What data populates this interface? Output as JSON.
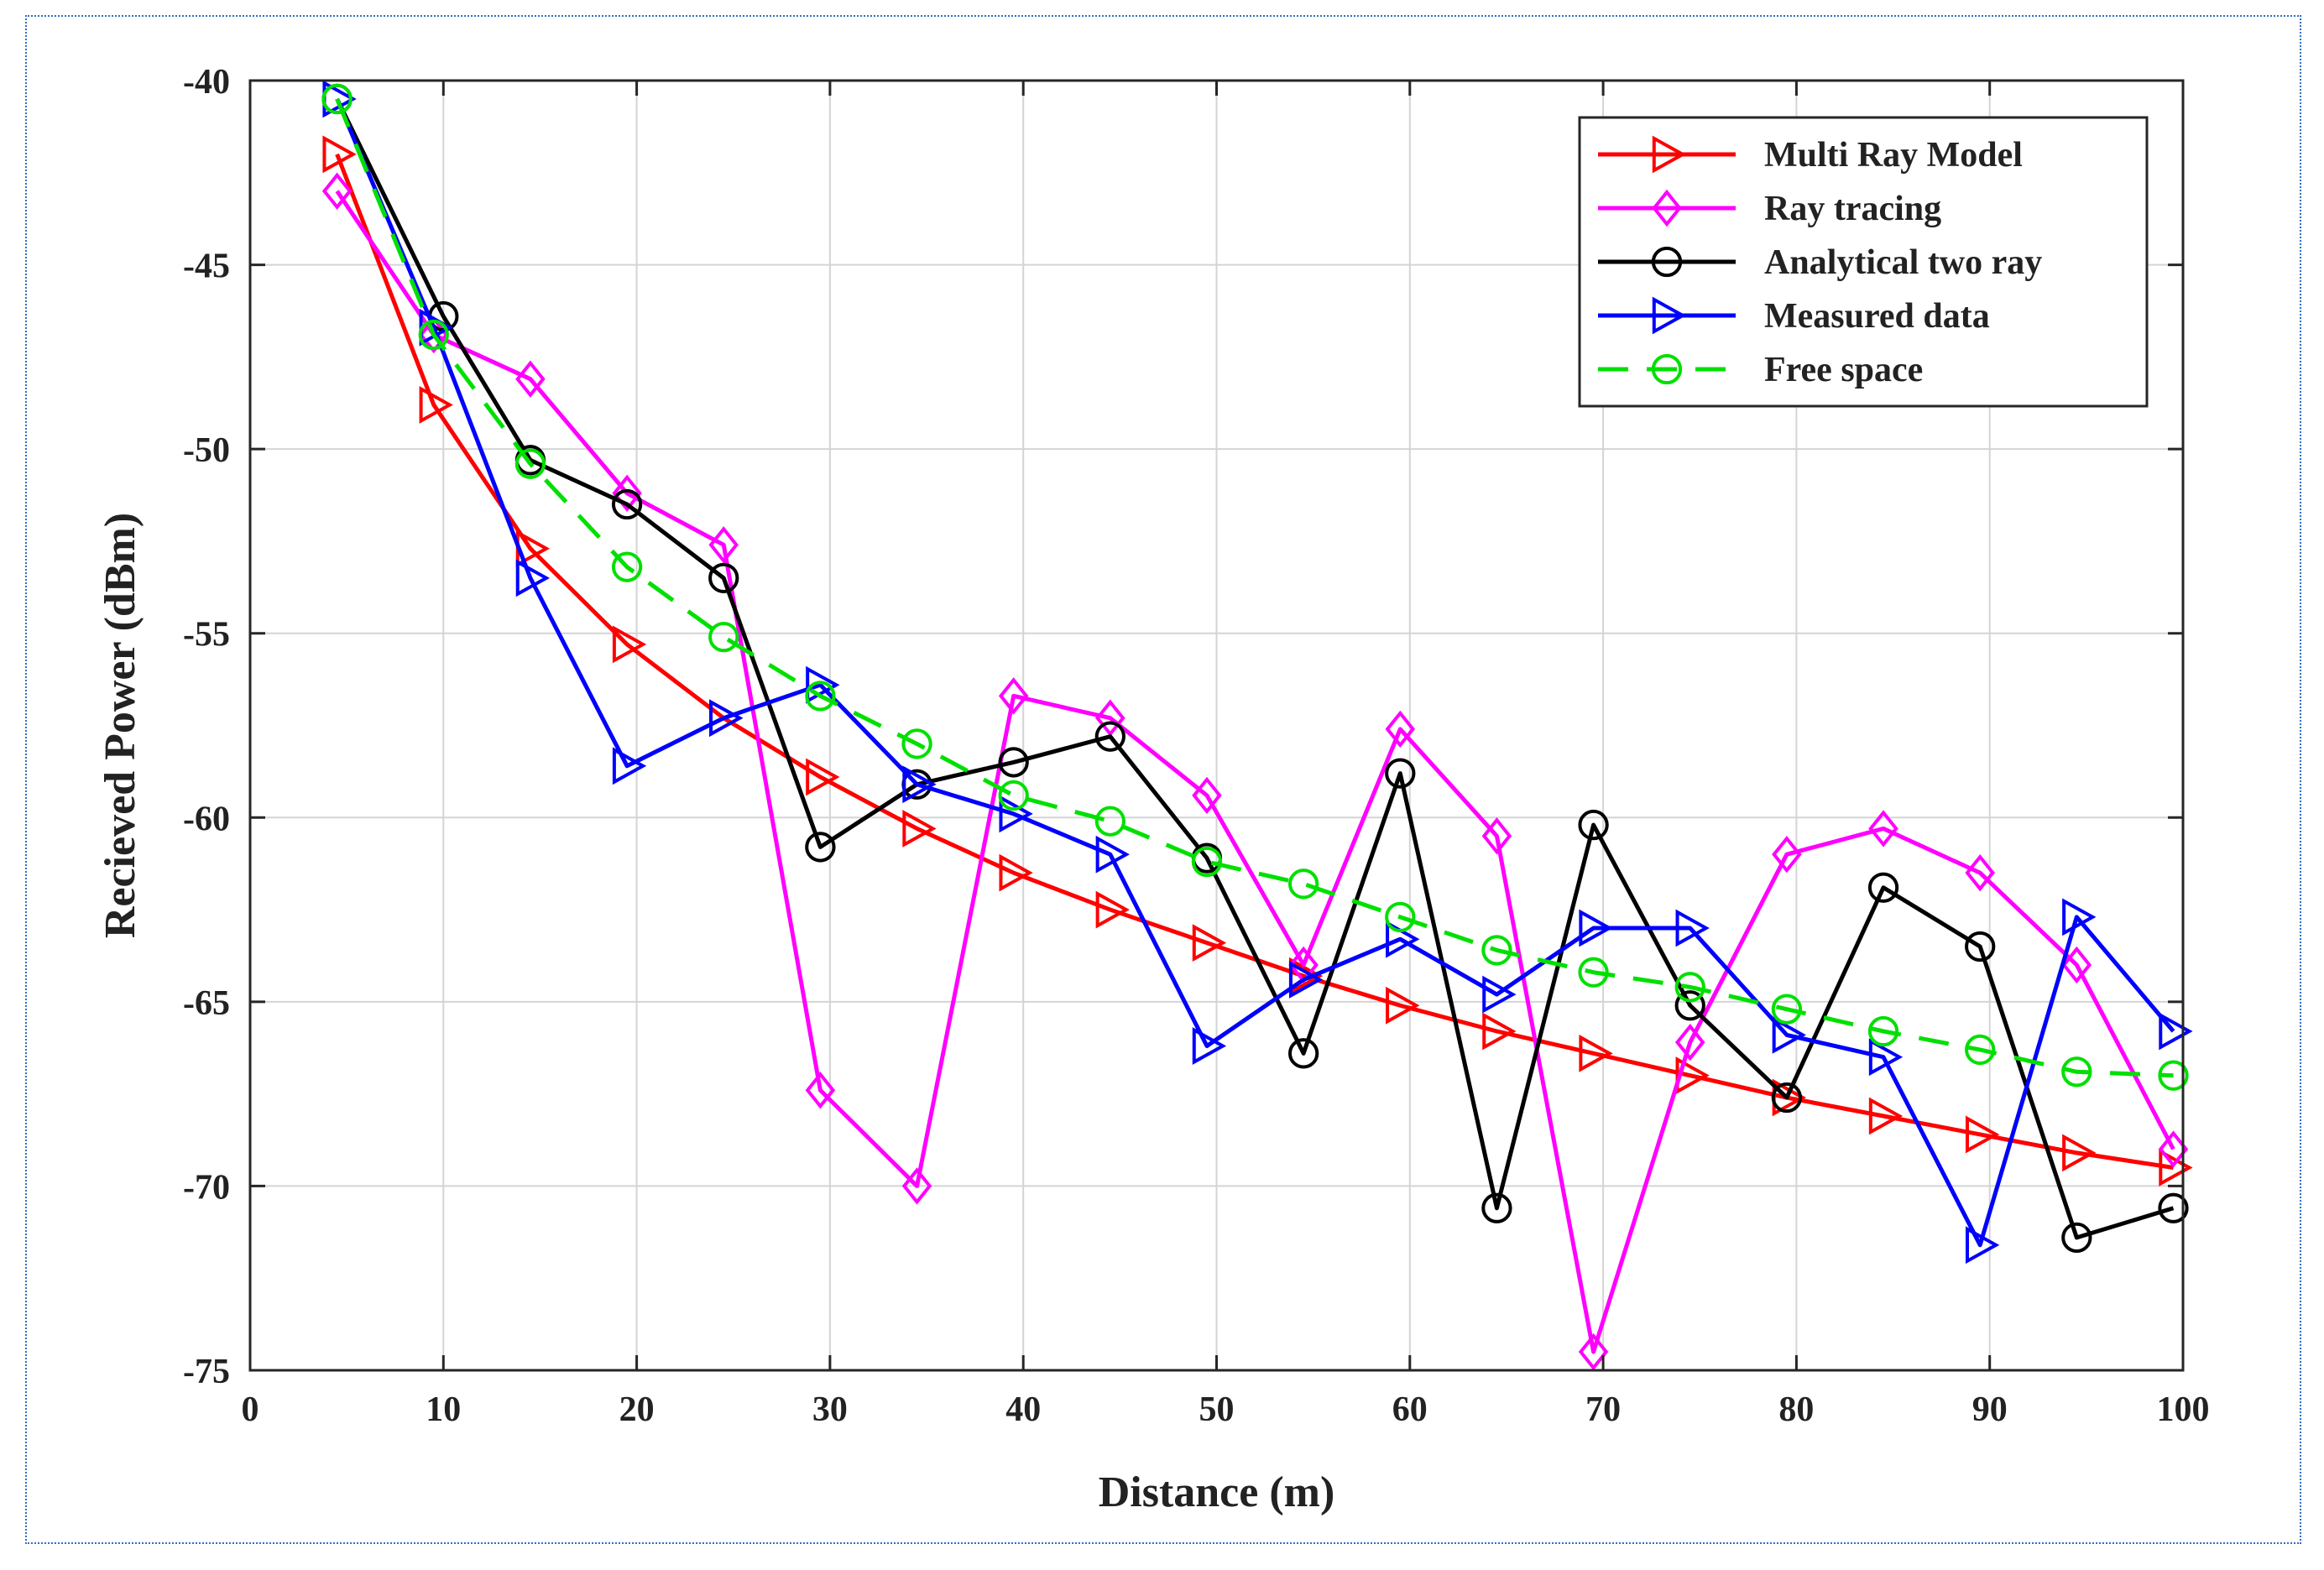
{
  "chart_data": {
    "type": "line",
    "title": "",
    "xlabel": "Distance (m)",
    "ylabel": "Recieved Power (dBm)",
    "xlim": [
      0,
      100
    ],
    "ylim": [
      -75,
      -40
    ],
    "xticks": [
      0,
      10,
      20,
      30,
      40,
      50,
      60,
      70,
      80,
      90,
      100
    ],
    "yticks": [
      -40,
      -45,
      -50,
      -55,
      -60,
      -65,
      -70,
      -75
    ],
    "grid": true,
    "legend_position": "top-right",
    "series": [
      {
        "name": "Multi Ray Model",
        "color": "#ff0000",
        "marker": "triangle-right",
        "dash": false,
        "x": [
          4.5,
          9.5,
          14.5,
          19.5,
          24.5,
          29.5,
          34.5,
          39.5,
          44.5,
          49.5,
          54.5,
          59.5,
          64.5,
          69.5,
          74.5,
          79.5,
          84.5,
          89.5,
          94.5,
          99.5
        ],
        "values": [
          -42.0,
          -48.8,
          -52.7,
          -55.3,
          -57.3,
          -58.9,
          -60.3,
          -61.5,
          -62.5,
          -63.4,
          -64.3,
          -65.1,
          -65.8,
          -66.4,
          -67.0,
          -67.6,
          -68.1,
          -68.6,
          -69.1,
          -69.5
        ]
      },
      {
        "name": "Ray tracing",
        "color": "#ff00ff",
        "marker": "diamond",
        "dash": false,
        "x": [
          4.5,
          9.5,
          14.5,
          19.5,
          24.5,
          29.5,
          34.5,
          39.5,
          44.5,
          49.5,
          54.5,
          59.5,
          64.5,
          69.5,
          74.5,
          79.5,
          84.5,
          89.5,
          94.5,
          99.5
        ],
        "values": [
          -43.0,
          -46.9,
          -48.1,
          -51.2,
          -52.6,
          -67.4,
          -70.0,
          -56.7,
          -57.3,
          -59.4,
          -64.0,
          -57.6,
          -60.5,
          -74.5,
          -66.1,
          -61.0,
          -60.3,
          -61.5,
          -64.0,
          -69.0
        ]
      },
      {
        "name": "Analytical two ray",
        "color": "#000000",
        "marker": "circle",
        "dash": false,
        "x": [
          4.5,
          10,
          14.5,
          19.5,
          24.5,
          29.5,
          34.5,
          39.5,
          44.5,
          49.5,
          54.5,
          59.5,
          64.5,
          69.5,
          74.5,
          79.5,
          84.5,
          89.5,
          94.5,
          99.5
        ],
        "values": [
          -40.5,
          -46.4,
          -50.3,
          -51.5,
          -53.5,
          -60.8,
          -59.1,
          -58.5,
          -57.8,
          -61.1,
          -66.4,
          -58.8,
          -70.6,
          -60.2,
          -65.1,
          -67.6,
          -61.9,
          -63.5,
          -71.4,
          -70.6
        ]
      },
      {
        "name": "Measured data",
        "color": "#0000ff",
        "marker": "triangle-right",
        "dash": false,
        "x": [
          4.5,
          9.5,
          14.5,
          19.5,
          24.5,
          29.5,
          34.5,
          39.5,
          44.5,
          49.5,
          54.5,
          59.5,
          64.5,
          69.5,
          74.5,
          79.5,
          84.5,
          89.5,
          94.5,
          99.5
        ],
        "values": [
          -40.5,
          -46.7,
          -53.5,
          -58.6,
          -57.3,
          -56.4,
          -59.1,
          -59.9,
          -61.0,
          -66.2,
          -64.4,
          -63.3,
          -64.8,
          -63.0,
          -63.0,
          -65.9,
          -66.5,
          -71.6,
          -62.7,
          -65.8
        ]
      },
      {
        "name": "Free space",
        "color": "#00e000",
        "marker": "circle",
        "dash": true,
        "x": [
          4.5,
          9.5,
          14.5,
          19.5,
          24.5,
          29.5,
          34.5,
          39.5,
          44.5,
          49.5,
          54.5,
          59.5,
          64.5,
          69.5,
          74.5,
          79.5,
          84.5,
          89.5,
          94.5,
          99.5
        ],
        "values": [
          -40.5,
          -46.9,
          -50.4,
          -53.2,
          -55.1,
          -56.7,
          -58.0,
          -59.4,
          -60.1,
          -61.2,
          -61.8,
          -62.7,
          -63.6,
          -64.2,
          -64.6,
          -65.2,
          -65.8,
          -66.3,
          -66.9,
          -67.0
        ]
      }
    ]
  }
}
